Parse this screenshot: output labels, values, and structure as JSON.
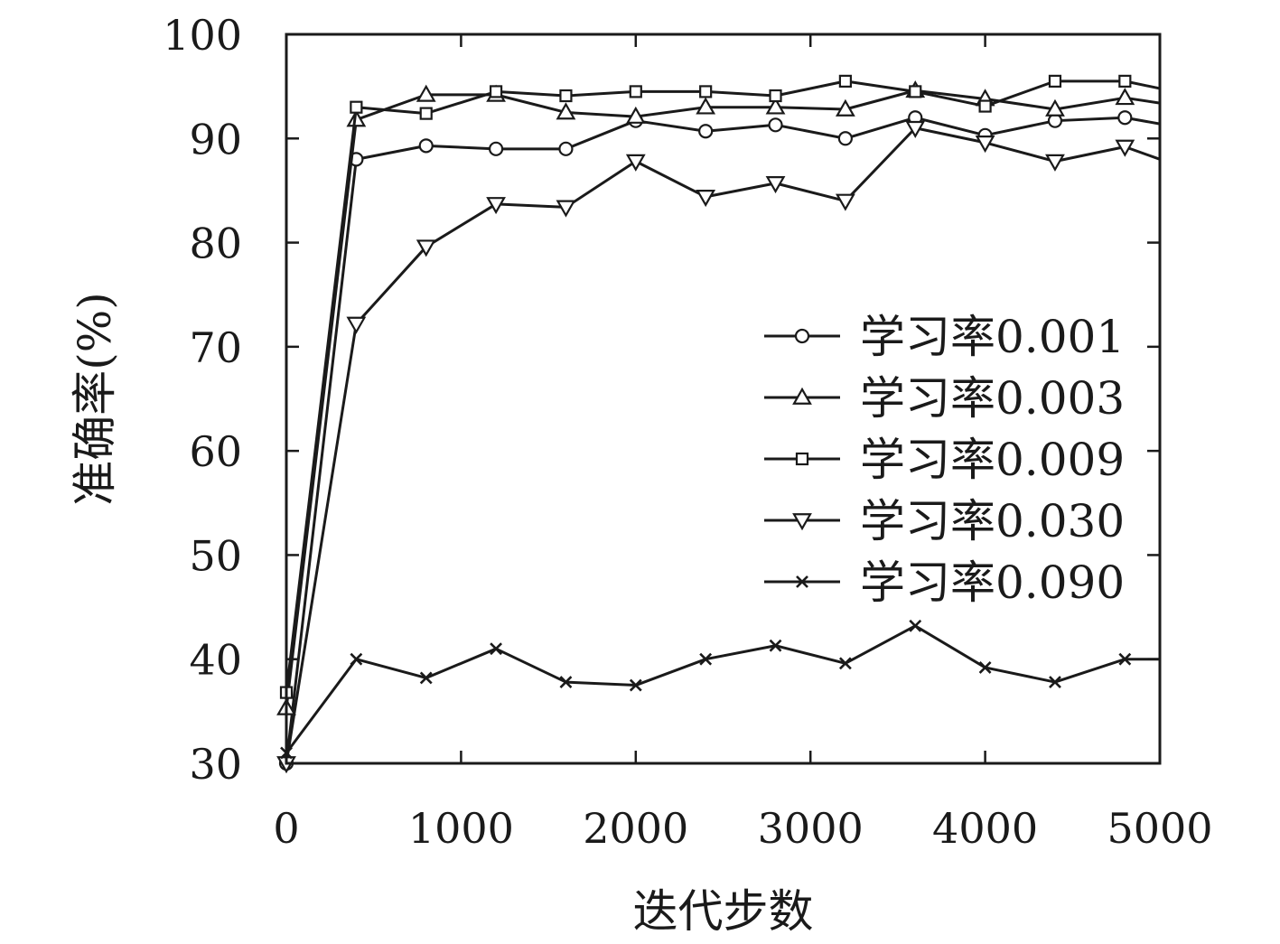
{
  "chart_data": {
    "type": "line",
    "xlabel": "迭代步数",
    "ylabel": "准确率(%)",
    "xlim": [
      0,
      5000
    ],
    "ylim": [
      30,
      100
    ],
    "xticks": [
      "0",
      "1000",
      "2000",
      "3000",
      "4000",
      "5000"
    ],
    "yticks": [
      "30",
      "40",
      "50",
      "60",
      "70",
      "80",
      "90",
      "100"
    ],
    "grid": false,
    "legend_position": "right",
    "x": [
      0,
      400,
      800,
      1200,
      1600,
      2000,
      2400,
      2800,
      3200,
      3600,
      4000,
      4400,
      4800,
      5000
    ],
    "series": [
      {
        "name": "学习率0.001",
        "marker": "circle",
        "values": [
          30,
          88,
          89.3,
          89,
          89,
          91.7,
          90.7,
          91.3,
          90,
          92,
          90.3,
          91.7,
          92,
          91.4
        ]
      },
      {
        "name": "学习率0.003",
        "marker": "triangle-up",
        "values": [
          35.3,
          91.8,
          94.2,
          94.2,
          92.5,
          92.1,
          93,
          93,
          92.8,
          94.6,
          93.8,
          92.8,
          93.9,
          93.4
        ]
      },
      {
        "name": "学习率0.009",
        "marker": "square",
        "values": [
          36.8,
          93,
          92.4,
          94.5,
          94.1,
          94.5,
          94.5,
          94.1,
          95.5,
          94.5,
          93.1,
          95.5,
          95.5,
          94.8
        ]
      },
      {
        "name": "学习率0.030",
        "marker": "triangle-down",
        "values": [
          30,
          72.2,
          79.6,
          83.7,
          83.4,
          87.8,
          84.4,
          85.7,
          84,
          91,
          89.6,
          87.8,
          89.2,
          88
        ]
      },
      {
        "name": "学习率0.090",
        "marker": "x",
        "values": [
          31,
          40,
          38.2,
          41,
          37.8,
          37.5,
          40,
          41.3,
          39.6,
          43.2,
          39.2,
          37.8,
          40,
          40
        ]
      }
    ]
  }
}
